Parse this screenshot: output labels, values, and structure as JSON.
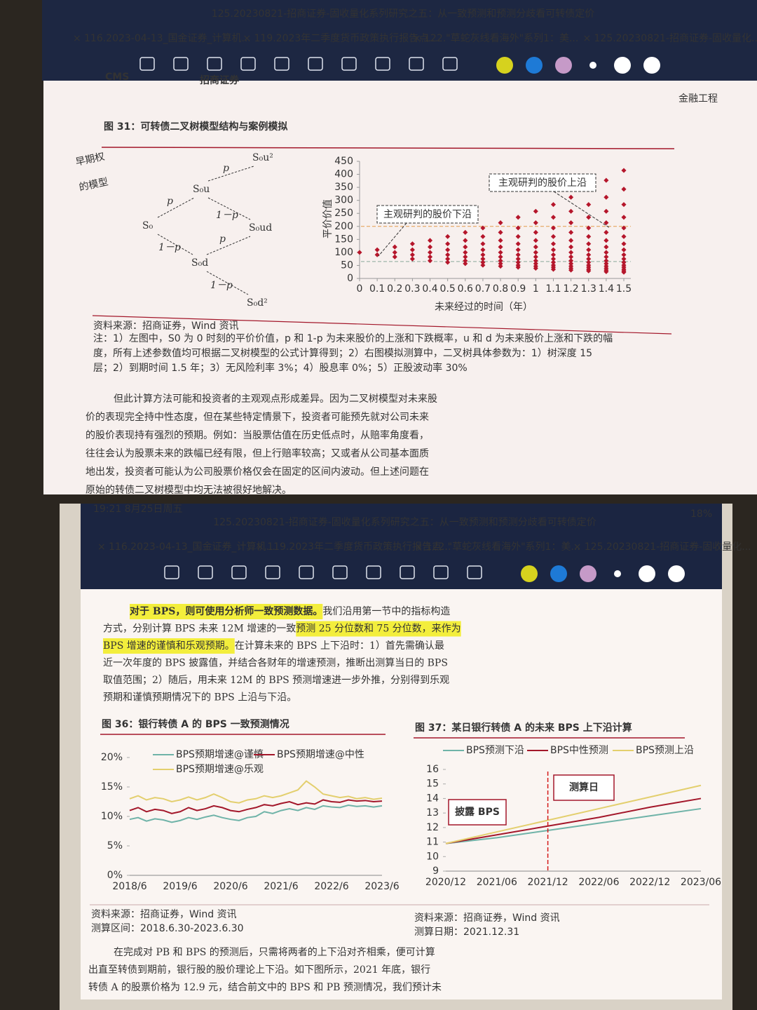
{
  "toolbar": {
    "title": "125.20230821-招商证券-固收量化系列研究之五：从一致预测和预测分歧看可转债定价",
    "tabs": [
      "116.2023-04-13_国金证券_计算机...",
      "119.2023年二季度货币政策执行报告点...",
      "122.\"草蛇灰线看海外\"系列1：美...",
      "125.20230821-招商证券-固收量化..."
    ]
  },
  "top": {
    "logo": "CMS",
    "logo_cn": "招商证券",
    "header_right": "金融工程",
    "handwriting": [
      "早期权",
      "的模型"
    ],
    "figure_title": "图 31：可转债二叉树模型结构与案例模拟",
    "tree": {
      "nodes": [
        "S₀u²",
        "S₀u",
        "S₀",
        "S₀ud",
        "S₀d",
        "S₀d²"
      ],
      "edge_labels": [
        "p",
        "p",
        "1－p",
        "p",
        "1－p",
        "1－p"
      ]
    },
    "scatter": {
      "type": "scatter",
      "ylabel": "平价价值",
      "xlabel": "未来经过的时间（年）",
      "xlim": [
        0,
        1.5
      ],
      "ylim": [
        0,
        450
      ],
      "xticks": [
        0,
        0.1,
        0.2,
        0.3,
        0.4,
        0.5,
        0.6,
        0.7,
        0.8,
        0.9,
        1,
        1.1,
        1.2,
        1.3,
        1.4,
        1.5
      ],
      "yticks": [
        0,
        50,
        100,
        150,
        200,
        250,
        300,
        350,
        400,
        450
      ],
      "color": "#b5162b",
      "points": [
        {
          "x": 0,
          "values": [
            100
          ]
        },
        {
          "x": 0.1,
          "values": [
            110,
            91
          ]
        },
        {
          "x": 0.2,
          "values": [
            121,
            100,
            83
          ]
        },
        {
          "x": 0.3,
          "values": [
            133,
            110,
            91,
            75
          ]
        },
        {
          "x": 0.4,
          "values": [
            146,
            121,
            100,
            83,
            68
          ]
        },
        {
          "x": 0.5,
          "values": [
            161,
            133,
            110,
            91,
            75,
            62
          ]
        },
        {
          "x": 0.6,
          "values": [
            177,
            146,
            121,
            100,
            83,
            68,
            57
          ]
        },
        {
          "x": 0.7,
          "values": [
            194,
            161,
            133,
            110,
            91,
            75,
            62,
            51
          ]
        },
        {
          "x": 0.8,
          "values": [
            214,
            177,
            146,
            121,
            100,
            83,
            68,
            57,
            47
          ]
        },
        {
          "x": 0.9,
          "values": [
            235,
            194,
            161,
            133,
            110,
            91,
            75,
            62,
            51,
            43
          ]
        },
        {
          "x": 1,
          "values": [
            258,
            214,
            177,
            146,
            121,
            100,
            83,
            68,
            57,
            47,
            39
          ]
        },
        {
          "x": 1.1,
          "values": [
            284,
            235,
            194,
            161,
            133,
            110,
            91,
            75,
            62,
            51,
            43,
            35
          ]
        },
        {
          "x": 1.2,
          "values": [
            312,
            258,
            214,
            177,
            146,
            121,
            100,
            83,
            68,
            57,
            47,
            39,
            32
          ]
        },
        {
          "x": 1.3,
          "values": [
            343,
            284,
            235,
            194,
            161,
            133,
            110,
            91,
            75,
            62,
            51,
            43,
            35,
            29
          ]
        },
        {
          "x": 1.4,
          "values": [
            377,
            312,
            258,
            214,
            177,
            146,
            121,
            100,
            83,
            68,
            57,
            47,
            39,
            32,
            26
          ]
        },
        {
          "x": 1.5,
          "values": [
            415,
            343,
            284,
            235,
            194,
            161,
            133,
            110,
            91,
            75,
            62,
            51,
            43,
            35,
            29,
            24
          ]
        }
      ],
      "upper_line": 200,
      "lower_line": 65,
      "annotations": [
        "主观研判的股价上沿",
        "主观研判的股价下沿"
      ]
    },
    "source": "资料来源：招商证券，Wind 资讯",
    "notes": [
      "注：1）左图中，S0 为 0 时刻的平价价值，p 和 1-p 为未来股价的上涨和下跌概率，u 和 d 为未来股价上涨和下跌的幅",
      "度，所有上述参数值均可根据二叉树模型的公式计算得到；2）右图模拟测算中，二叉树具体参数为：1）树深度 15",
      "层；2）到期时间 1.5 年；3）无风险利率 3%；4）股息率 0%；5）正股波动率 30%"
    ],
    "paragraph": [
      "但此计算方法可能和投资者的主观观点形成差异。因为二叉树模型对未来股",
      "价的表现完全持中性态度，但在某些特定情景下，投资者可能预先就对公司未来",
      "的股价表现持有强烈的预期。例如：当股票估值在历史低点时，从赔率角度看，",
      "往往会认为股票未来的跌幅已经有限，但上行赔率较高；又或者从公司基本面质",
      "地出发，投资者可能认为公司股票价格仅会在固定的区间内波动。但上述问题在",
      "原始的转债二叉树模型中均无法被很好地解决。"
    ]
  },
  "bottom": {
    "status_time": "19:21  8月25日周五",
    "battery": "18%",
    "paragraph": [
      [
        {
          "text": "对于 BPS，则可使用分析师一致预测数据。",
          "highlight": true
        },
        {
          "text": "我们沿用第一节中的指标构造",
          "highlight": false
        }
      ],
      [
        {
          "text": "方式，分别计算 BPS 未来 12M 增速的一致",
          "highlight": false
        },
        {
          "text": "预测 25 分位数和 75 分位数，来作为",
          "highlight": true
        }
      ],
      [
        {
          "text": "BPS 增速的谨慎和乐观预期。",
          "highlight": true
        },
        {
          "text": "在计算未来的 BPS 上下沿时：1）首先需确认最",
          "highlight": false
        }
      ],
      [
        {
          "text": "近一次年度的 BPS 披露值，并结合各财年的增速预测，推断出测算当日的 BPS",
          "highlight": false
        }
      ],
      [
        {
          "text": "取值范围；2）随后，用未来 12M 的 BPS 预测增速进一步外推，分别得到乐观",
          "highlight": false
        }
      ],
      [
        {
          "text": "预期和谨慎预期情况下的 BPS 上沿与下沿。",
          "highlight": false
        }
      ]
    ],
    "figure36": {
      "type": "line",
      "title": "图 36：银行转债 A 的 BPS 一致预测情况",
      "ylim": [
        0,
        20
      ],
      "yticks": [
        {
          "value": 0,
          "label": "0%"
        },
        {
          "value": 5,
          "label": "5%"
        },
        {
          "value": 10,
          "label": "10%"
        },
        {
          "value": 15,
          "label": "15%"
        },
        {
          "value": 20,
          "label": "20%"
        }
      ],
      "categories": [
        "2018/6",
        null,
        null,
        null,
        null,
        null,
        "2019/6",
        null,
        null,
        null,
        null,
        null,
        "2020/6",
        null,
        null,
        null,
        null,
        null,
        "2021/6",
        null,
        null,
        null,
        null,
        null,
        "2022/6",
        null,
        null,
        null,
        null,
        null,
        "2023/6"
      ],
      "series": [
        {
          "name": "BPS预期增速@谨慎",
          "color": "#6fb3a8",
          "values": [
            9.5,
            9.8,
            9.2,
            9.6,
            9.4,
            9,
            9.3,
            9.8,
            9.5,
            9.9,
            10.2,
            9.8,
            9.5,
            9.3,
            9.8,
            10,
            10.8,
            10.5,
            11,
            11.3,
            11,
            11.5,
            11.2,
            11.8,
            11.6,
            11.5,
            11.9,
            11.7,
            11.8,
            11.6,
            11.8
          ]
        },
        {
          "name": "BPS预期增速@中性",
          "color": "#a3172a",
          "values": [
            11,
            11.5,
            10.8,
            11.2,
            11,
            10.5,
            10.8,
            11.5,
            11,
            11.3,
            11.8,
            11.5,
            11,
            10.8,
            11.2,
            11.5,
            12,
            11.8,
            12.2,
            12.5,
            12,
            12.3,
            12.1,
            12.8,
            12.5,
            12.4,
            12.8,
            12.6,
            12.7,
            12.5,
            12.6
          ]
        },
        {
          "name": "BPS预期增速@乐观",
          "color": "#e3cf6e",
          "values": [
            13,
            13.5,
            12.8,
            13.2,
            13,
            12.5,
            12.8,
            13.3,
            12.8,
            13.2,
            13.8,
            13.2,
            12.5,
            12.3,
            12.8,
            13,
            13.5,
            13.2,
            13.5,
            14,
            14.5,
            16,
            15,
            13.8,
            13.5,
            13.2,
            13.4,
            13,
            13.2,
            12.9,
            13.1
          ]
        }
      ]
    },
    "figure37": {
      "type": "line",
      "title": "图 37：某日银行转债 A 的未来 BPS 上下沿计算",
      "ylim": [
        9,
        16
      ],
      "yticks": [
        9,
        10,
        11,
        12,
        13,
        14,
        15,
        16
      ],
      "categories": [
        "2020/12",
        "2021/06",
        "2021/12",
        "2022/06",
        "2022/12",
        "2023/06"
      ],
      "series": [
        {
          "name": "BPS预测下沿",
          "color": "#6fb3a8",
          "values": [
            10.9,
            11.3,
            11.8,
            12.3,
            12.8,
            13.3
          ]
        },
        {
          "name": "BPS中性预测",
          "color": "#a3172a",
          "values": [
            10.9,
            11.5,
            12.1,
            12.7,
            13.4,
            14
          ]
        },
        {
          "name": "BPS预测上沿",
          "color": "#e3cf6e",
          "values": [
            10.9,
            11.7,
            12.5,
            13.3,
            14.1,
            14.9
          ]
        }
      ],
      "annotations": [
        "测算日",
        "披露 BPS"
      ]
    },
    "source36": "资料来源：招商证券，Wind 资讯",
    "range36": "测算区间：2018.6.30-2023.6.30",
    "source37": "资料来源：招商证券，Wind 资讯",
    "date37": "测算日期：2021.12.31",
    "paragraph2": [
      "在完成对 PB 和 BPS 的预测后，只需将两者的上下沿对齐相乘，便可计算",
      "出直至转债到期前，银行股的股价理论上下沿。如下图所示，2021 年底，银行",
      "转债 A 的股票价格为 12.9 元，结合前文中的 BPS 和 PB 预测情况，我们预计未"
    ]
  }
}
